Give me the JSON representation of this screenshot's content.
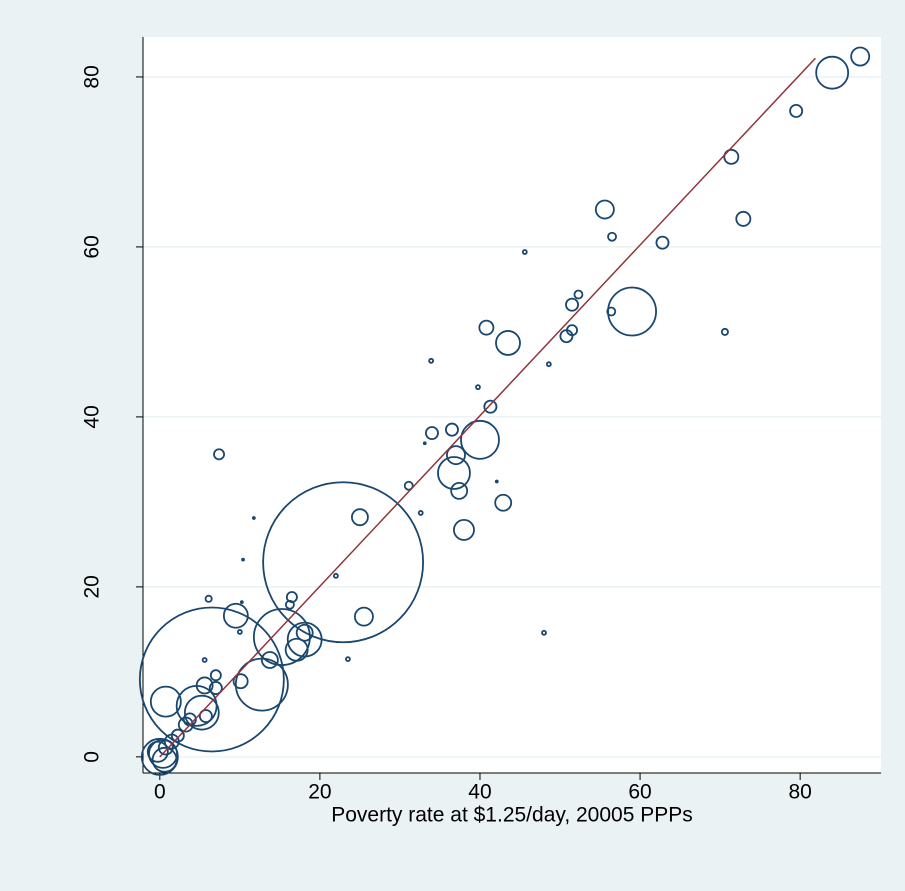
{
  "chart_data": {
    "type": "scatter",
    "xlabel": "Poverty rate at $1.25/day, 20005 PPPs",
    "xlim": [
      -2.1,
      90.1
    ],
    "ylim": [
      -1.9,
      84.7
    ],
    "xticks": [
      0,
      20,
      40,
      60,
      80
    ],
    "yticks": [
      0,
      20,
      40,
      60,
      80
    ],
    "grid": true,
    "color": "#1a476f",
    "x": [
      84,
      87.5,
      79.5,
      71.4,
      72.9,
      55.6,
      56.5,
      62.8,
      45.6,
      59,
      70.6,
      56.4,
      52.3,
      51.5,
      51.5,
      50.8,
      40.8,
      43.5,
      48.6,
      33.9,
      39.75,
      41.3,
      34,
      36.5,
      40,
      33.1,
      37,
      36.75,
      37.4,
      31.1,
      42.1,
      7.4,
      25,
      42.9,
      38,
      32.6,
      11.75,
      22.9,
      25.5,
      22,
      23.5,
      48,
      10.4,
      6.1,
      9.5,
      16.5,
      16.25,
      15.25,
      18.1,
      17.1,
      18.1,
      13.75,
      12.75,
      6.5,
      10.1,
      5.6,
      0.75,
      4.6,
      5.25,
      5.6,
      7,
      7,
      5.75,
      3.75,
      3.25,
      2.25,
      1.5,
      0.75,
      0.4,
      0,
      0.6,
      -0.25,
      10.25,
      10
    ],
    "y": [
      80.5,
      82.4,
      76,
      70.6,
      63.3,
      64.4,
      61.2,
      60.5,
      59.4,
      52.4,
      50,
      52.4,
      54.4,
      53.2,
      50.2,
      49.5,
      50.5,
      48.7,
      46.2,
      46.6,
      43.5,
      41.2,
      38.1,
      38.5,
      37.3,
      36.9,
      35.5,
      33.4,
      31.3,
      31.9,
      32.4,
      35.6,
      28.2,
      29.9,
      26.7,
      28.7,
      28.1,
      22.9,
      16.5,
      21.3,
      11.5,
      14.6,
      23.2,
      18.6,
      16.6,
      18.8,
      17.9,
      14.1,
      13.8,
      12.6,
      14.6,
      11.4,
      8.5,
      9.1,
      8.9,
      11.4,
      6.5,
      6,
      5.2,
      8.4,
      9.6,
      8.1,
      4.8,
      4.4,
      3.8,
      2.5,
      1.8,
      1.1,
      0.35,
      0,
      -0.35,
      0.6,
      18.2,
      14.7
    ],
    "sizes": [
      16,
      5.1,
      2.3,
      3.1,
      3.1,
      5.1,
      1,
      2.3,
      0.25,
      36,
      0.6,
      1,
      1,
      2.3,
      1.6,
      2.3,
      3.1,
      9,
      0.25,
      0.25,
      0.25,
      2.3,
      2.3,
      2.3,
      22.6,
      0.06,
      5.1,
      16,
      4,
      1,
      0.06,
      1.6,
      4,
      4,
      6.3,
      0.25,
      0.06,
      400,
      5.1,
      0.25,
      0.25,
      0.25,
      0.06,
      0.6,
      9,
      1.6,
      1,
      49,
      18,
      7.6,
      4,
      4,
      42.3,
      324,
      3.1,
      0.25,
      14.1,
      25,
      18,
      4,
      1.6,
      2.3,
      2.3,
      2.3,
      3.1,
      2.3,
      3.1,
      3.1,
      12.3,
      20.3,
      9,
      6.3,
      0.06,
      0.25
    ],
    "fit": {
      "x": [
        0,
        81.9
      ],
      "y": [
        0,
        82.2
      ],
      "color": "#90353b"
    }
  }
}
